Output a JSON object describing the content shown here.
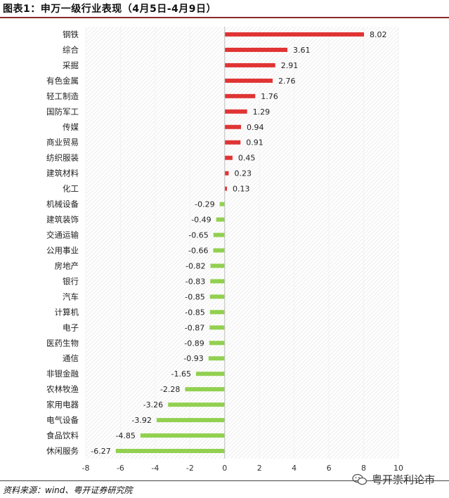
{
  "title": "图表1：申万一级行业表现（4月5日-4月9日）",
  "source": "资料来源：wind、粤开证券研究院",
  "watermark": "粤开崇利论市",
  "colors": {
    "positive": "#e03434",
    "negative": "#92d050"
  },
  "chart_data": {
    "type": "bar",
    "orientation": "horizontal",
    "title": "",
    "xlabel": "",
    "ylabel": "",
    "xlim": [
      -8,
      10
    ],
    "xticks": [
      -8,
      -6,
      -4,
      -2,
      0,
      2,
      4,
      6,
      8,
      10
    ],
    "categories": [
      "钢铁",
      "综合",
      "采掘",
      "有色金属",
      "轻工制造",
      "国防军工",
      "传媒",
      "商业贸易",
      "纺织服装",
      "建筑材料",
      "化工",
      "机械设备",
      "建筑装饰",
      "交通运输",
      "公用事业",
      "房地产",
      "银行",
      "汽车",
      "计算机",
      "电子",
      "医药生物",
      "通信",
      "非银金融",
      "农林牧渔",
      "家用电器",
      "电气设备",
      "食品饮料",
      "休闲服务"
    ],
    "values": [
      8.02,
      3.61,
      2.91,
      2.76,
      1.76,
      1.29,
      0.94,
      0.91,
      0.45,
      0.23,
      0.13,
      -0.29,
      -0.49,
      -0.65,
      -0.66,
      -0.82,
      -0.83,
      -0.85,
      -0.85,
      -0.87,
      -0.89,
      -0.93,
      -1.65,
      -2.28,
      -3.26,
      -3.92,
      -4.85,
      -6.27
    ],
    "labels": [
      "8.02",
      "3.61",
      "2.91",
      "2.76",
      "1.76",
      "1.29",
      "0.94",
      "0.91",
      "0.45",
      "0.23",
      "0.13",
      "-0.29",
      "-0.49",
      "-0.65",
      "-0.66",
      "-0.82",
      "-0.83",
      "-0.85",
      "-0.85",
      "-0.87",
      "-0.89",
      "-0.93",
      "-1.65",
      "-2.28",
      "-3.26",
      "-3.92",
      "-4.85",
      "-6.27"
    ]
  }
}
